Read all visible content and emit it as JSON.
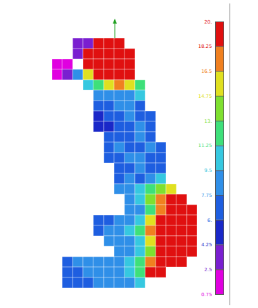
{
  "chart_data": {
    "type": "heatmap",
    "cells": [
      [
        2,
        0,
        3
      ],
      [
        3,
        0,
        3
      ],
      [
        4,
        0,
        20
      ],
      [
        5,
        0,
        20
      ],
      [
        6,
        0,
        20
      ],
      [
        2,
        1,
        3
      ],
      [
        3,
        1,
        20
      ],
      [
        4,
        1,
        20
      ],
      [
        5,
        1,
        20
      ],
      [
        6,
        1,
        20
      ],
      [
        7,
        1,
        20
      ],
      [
        0,
        2,
        2
      ],
      [
        1,
        2,
        2
      ],
      [
        3,
        2,
        20
      ],
      [
        4,
        2,
        20
      ],
      [
        5,
        2,
        20
      ],
      [
        6,
        2,
        20
      ],
      [
        7,
        2,
        20
      ],
      [
        0,
        3,
        2
      ],
      [
        1,
        3,
        3
      ],
      [
        2,
        3,
        9
      ],
      [
        3,
        3,
        16
      ],
      [
        4,
        3,
        20
      ],
      [
        5,
        3,
        20
      ],
      [
        6,
        3,
        20
      ],
      [
        7,
        3,
        20
      ],
      [
        3,
        4,
        10
      ],
      [
        4,
        4,
        12
      ],
      [
        5,
        4,
        15
      ],
      [
        6,
        4,
        17
      ],
      [
        7,
        4,
        15
      ],
      [
        8,
        4,
        12
      ],
      [
        4,
        5,
        9
      ],
      [
        5,
        5,
        8
      ],
      [
        6,
        5,
        8
      ],
      [
        7,
        5,
        9
      ],
      [
        8,
        5,
        10
      ],
      [
        4,
        6,
        7
      ],
      [
        5,
        6,
        7
      ],
      [
        6,
        6,
        8
      ],
      [
        7,
        6,
        8
      ],
      [
        8,
        6,
        7
      ],
      [
        4,
        7,
        5
      ],
      [
        5,
        7,
        7
      ],
      [
        6,
        7,
        7
      ],
      [
        7,
        7,
        8
      ],
      [
        8,
        7,
        7
      ],
      [
        9,
        7,
        7
      ],
      [
        4,
        8,
        5
      ],
      [
        5,
        8,
        5
      ],
      [
        6,
        8,
        7
      ],
      [
        7,
        8,
        7
      ],
      [
        8,
        8,
        8
      ],
      [
        9,
        8,
        7
      ],
      [
        5,
        9,
        7
      ],
      [
        6,
        9,
        7
      ],
      [
        7,
        9,
        7
      ],
      [
        8,
        9,
        8
      ],
      [
        9,
        9,
        7
      ],
      [
        5,
        10,
        7
      ],
      [
        6,
        10,
        8
      ],
      [
        7,
        10,
        7
      ],
      [
        8,
        10,
        7
      ],
      [
        9,
        10,
        8
      ],
      [
        10,
        10,
        7
      ],
      [
        5,
        11,
        7
      ],
      [
        6,
        11,
        7
      ],
      [
        7,
        11,
        8
      ],
      [
        8,
        11,
        8
      ],
      [
        9,
        11,
        7
      ],
      [
        10,
        11,
        7
      ],
      [
        6,
        12,
        7
      ],
      [
        7,
        12,
        7
      ],
      [
        8,
        12,
        8
      ],
      [
        9,
        12,
        7
      ],
      [
        10,
        12,
        7
      ],
      [
        6,
        13,
        7
      ],
      [
        7,
        13,
        8
      ],
      [
        8,
        13,
        7
      ],
      [
        9,
        13,
        8
      ],
      [
        10,
        13,
        10
      ],
      [
        6,
        14,
        8
      ],
      [
        7,
        14,
        9
      ],
      [
        8,
        14,
        10
      ],
      [
        9,
        14,
        12
      ],
      [
        10,
        14,
        14
      ],
      [
        11,
        14,
        16
      ],
      [
        7,
        15,
        9
      ],
      [
        8,
        15,
        10
      ],
      [
        9,
        15,
        13
      ],
      [
        10,
        15,
        17
      ],
      [
        11,
        15,
        20
      ],
      [
        12,
        15,
        20
      ],
      [
        7,
        16,
        8
      ],
      [
        8,
        16,
        9
      ],
      [
        9,
        16,
        12
      ],
      [
        10,
        16,
        18
      ],
      [
        11,
        16,
        20
      ],
      [
        12,
        16,
        20
      ],
      [
        13,
        16,
        20
      ],
      [
        4,
        17,
        7
      ],
      [
        5,
        17,
        7
      ],
      [
        6,
        17,
        8
      ],
      [
        7,
        17,
        9
      ],
      [
        8,
        17,
        11
      ],
      [
        9,
        17,
        16
      ],
      [
        10,
        17,
        20
      ],
      [
        11,
        17,
        20
      ],
      [
        12,
        17,
        20
      ],
      [
        13,
        17,
        20
      ],
      [
        4,
        18,
        7
      ],
      [
        5,
        18,
        8
      ],
      [
        6,
        18,
        9
      ],
      [
        7,
        18,
        10
      ],
      [
        8,
        18,
        12
      ],
      [
        9,
        18,
        17
      ],
      [
        10,
        18,
        20
      ],
      [
        11,
        18,
        20
      ],
      [
        12,
        18,
        20
      ],
      [
        13,
        18,
        20
      ],
      [
        5,
        19,
        8
      ],
      [
        6,
        19,
        9
      ],
      [
        7,
        19,
        9
      ],
      [
        8,
        19,
        11
      ],
      [
        9,
        19,
        16
      ],
      [
        10,
        19,
        20
      ],
      [
        11,
        19,
        20
      ],
      [
        12,
        19,
        20
      ],
      [
        13,
        19,
        20
      ],
      [
        6,
        20,
        8
      ],
      [
        7,
        20,
        9
      ],
      [
        8,
        20,
        10
      ],
      [
        9,
        20,
        14
      ],
      [
        10,
        20,
        20
      ],
      [
        11,
        20,
        20
      ],
      [
        12,
        20,
        20
      ],
      [
        13,
        20,
        20
      ],
      [
        1,
        21,
        7
      ],
      [
        2,
        21,
        8
      ],
      [
        3,
        21,
        8
      ],
      [
        4,
        21,
        9
      ],
      [
        5,
        21,
        9
      ],
      [
        6,
        21,
        9
      ],
      [
        7,
        21,
        10
      ],
      [
        8,
        21,
        12
      ],
      [
        9,
        21,
        17
      ],
      [
        10,
        21,
        20
      ],
      [
        11,
        21,
        20
      ],
      [
        12,
        21,
        20
      ],
      [
        1,
        22,
        7
      ],
      [
        2,
        22,
        7
      ],
      [
        3,
        22,
        8
      ],
      [
        4,
        22,
        8
      ],
      [
        5,
        22,
        9
      ],
      [
        6,
        22,
        9
      ],
      [
        7,
        22,
        10
      ],
      [
        8,
        22,
        12
      ],
      [
        9,
        22,
        20
      ],
      [
        10,
        22,
        20
      ],
      [
        1,
        23,
        7
      ],
      [
        2,
        23,
        7
      ],
      [
        3,
        23,
        7
      ],
      [
        4,
        23,
        8
      ],
      [
        5,
        23,
        8
      ],
      [
        6,
        23,
        9
      ],
      [
        7,
        23,
        8
      ],
      [
        8,
        23,
        11
      ]
    ],
    "colorbar": {
      "range": [
        0.75,
        20
      ],
      "ticks": [
        0.75,
        2.5,
        4.25,
        {
          "value": 6,
          "label": "6."
        },
        7.75,
        9.5,
        11.25,
        {
          "value": 13,
          "label": "13."
        },
        14.75,
        16.5,
        18.25,
        {
          "value": 20,
          "label": "20."
        }
      ],
      "colors": [
        "#e000e0",
        "#7a1fd0",
        "#1a28c8",
        "#1e5ee0",
        "#2f8fe8",
        "#36c8e0",
        "#3ee07a",
        "#7ee030",
        "#e0e020",
        "#f08020",
        "#e01010"
      ]
    }
  }
}
